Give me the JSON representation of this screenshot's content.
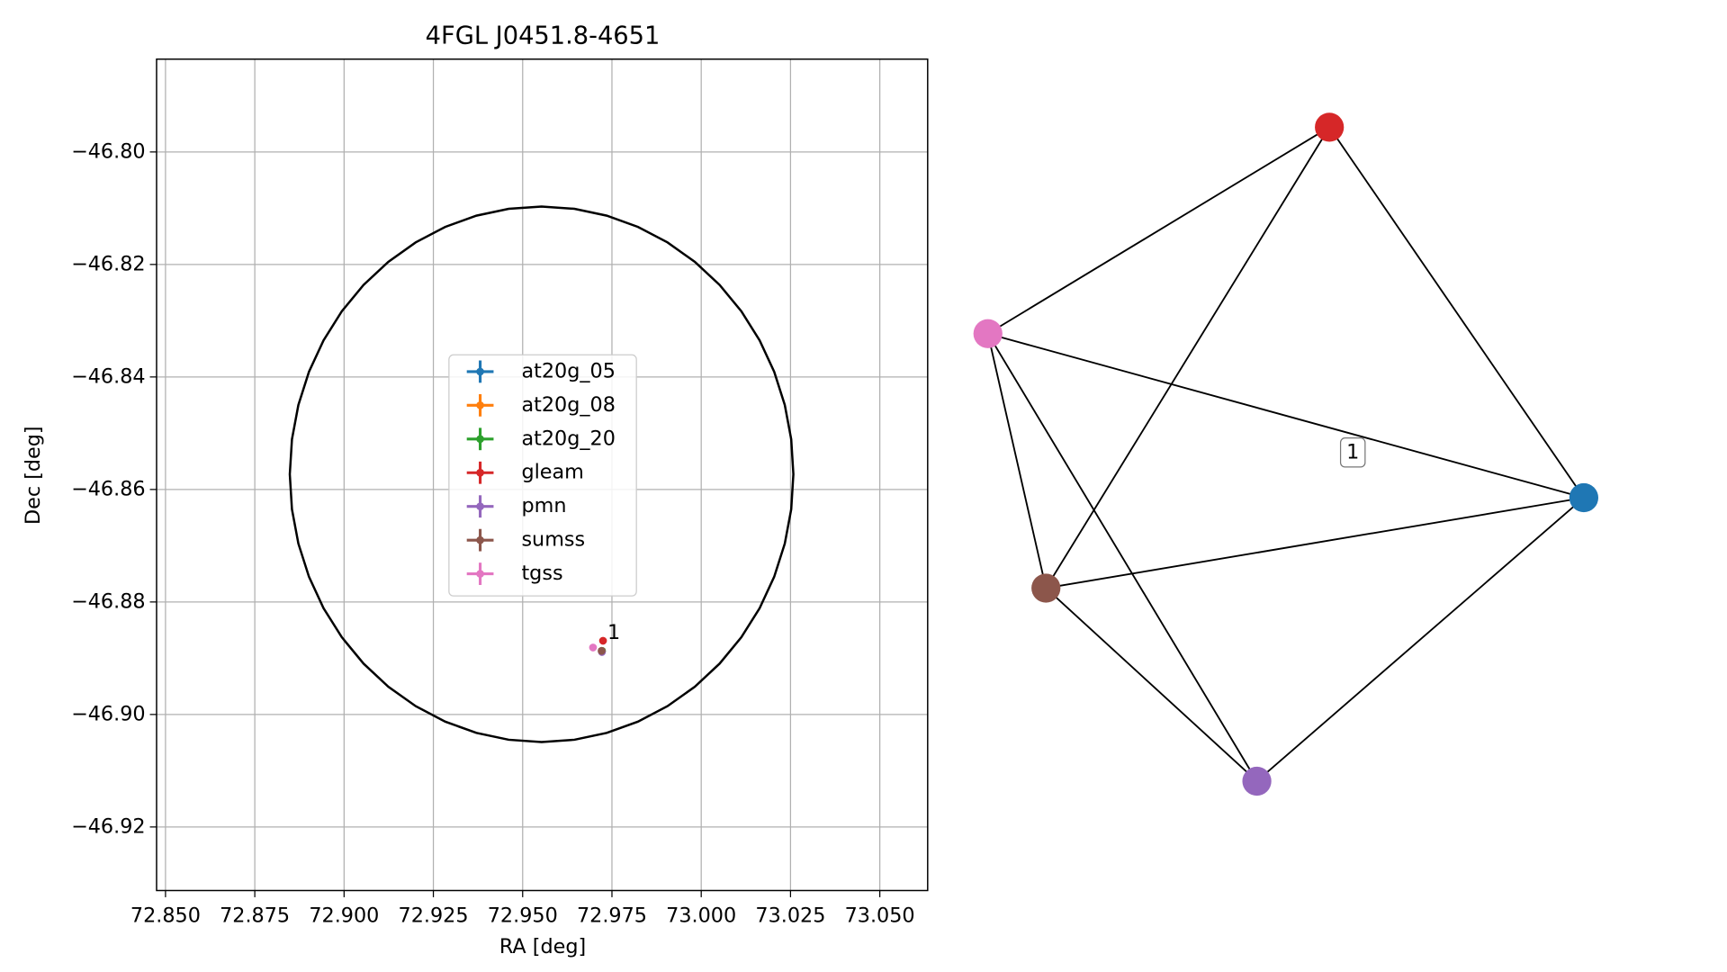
{
  "chart_data": {
    "type": "scatter",
    "title": "4FGL J0451.8-4651",
    "x_label": "RA [deg]",
    "y_label": "Dec [deg]",
    "xlim": [
      72.8475,
      73.0634
    ],
    "ylim": [
      -46.9313,
      -46.7835
    ],
    "xticks": [
      {
        "value": 72.85,
        "label": "72.850"
      },
      {
        "value": 72.875,
        "label": "72.875"
      },
      {
        "value": 72.9,
        "label": "72.900"
      },
      {
        "value": 72.925,
        "label": "72.925"
      },
      {
        "value": 72.95,
        "label": "72.950"
      },
      {
        "value": 72.975,
        "label": "72.975"
      },
      {
        "value": 73.0,
        "label": "73.000"
      },
      {
        "value": 73.025,
        "label": "73.025"
      },
      {
        "value": 73.05,
        "label": "73.050"
      }
    ],
    "yticks": [
      {
        "value": -46.8,
        "label": "−46.80"
      },
      {
        "value": -46.82,
        "label": "−46.82"
      },
      {
        "value": -46.84,
        "label": "−46.84"
      },
      {
        "value": -46.86,
        "label": "−46.86"
      },
      {
        "value": -46.88,
        "label": "−46.88"
      },
      {
        "value": -46.9,
        "label": "−46.90"
      },
      {
        "value": -46.92,
        "label": "−46.92"
      }
    ],
    "grid": true,
    "series": [
      {
        "name": "at20g_05",
        "color": "#1f77b4",
        "x": [
          72.9722
        ],
        "values": [
          -46.8887
        ]
      },
      {
        "name": "at20g_08",
        "color": "#ff7f0e",
        "x": [
          72.9722
        ],
        "values": [
          -46.8887
        ]
      },
      {
        "name": "at20g_20",
        "color": "#2ca02c",
        "x": [
          72.9722
        ],
        "values": [
          -46.8887
        ]
      },
      {
        "name": "gleam",
        "color": "#d62728",
        "x": [
          72.9725
        ],
        "values": [
          -46.8869
        ]
      },
      {
        "name": "pmn",
        "color": "#9467bd",
        "x": [
          72.9722
        ],
        "values": [
          -46.8889
        ]
      },
      {
        "name": "sumss",
        "color": "#8c564b",
        "x": [
          72.9721
        ],
        "values": [
          -46.8887
        ]
      },
      {
        "name": "tgss",
        "color": "#e377c2",
        "x": [
          72.9697
        ],
        "values": [
          -46.8881
        ]
      }
    ],
    "ellipse": {
      "center": [
        72.9553,
        -46.8573
      ],
      "semi_axes": [
        0.0705,
        0.0476
      ]
    },
    "annotation": "1"
  },
  "graph": {
    "nodes": [
      {
        "color": "#d62728"
      },
      {
        "color": "#1f77b4"
      },
      {
        "color": "#9467bd"
      },
      {
        "color": "#8c564b"
      },
      {
        "color": "#e377c2"
      }
    ],
    "edges": [
      [
        0,
        4
      ],
      [
        0,
        3
      ],
      [
        0,
        1
      ],
      [
        4,
        1
      ],
      [
        4,
        3
      ],
      [
        4,
        2
      ],
      [
        3,
        1
      ],
      [
        3,
        2
      ],
      [
        2,
        1
      ]
    ],
    "edge_label": {
      "edge": 3,
      "label": "1"
    }
  }
}
